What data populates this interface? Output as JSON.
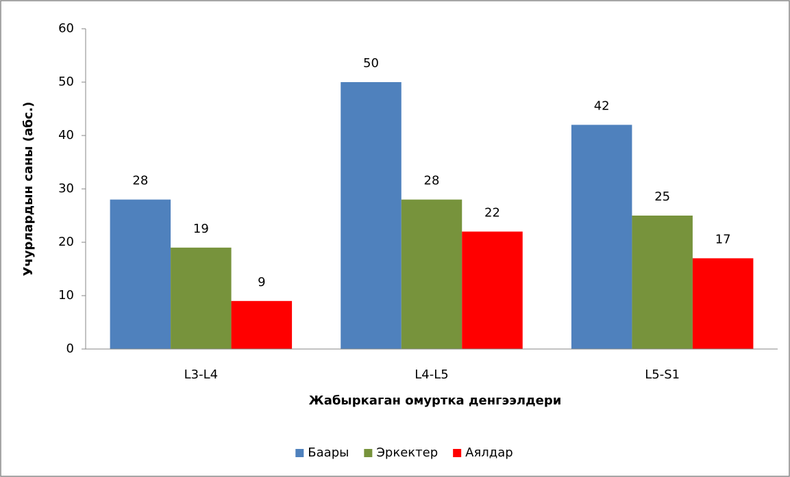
{
  "chart_data": {
    "type": "bar",
    "x_label": "Жабыркаган омуртка денгээлдери",
    "y_label": "Учурлардын саны (абс.)",
    "categories": [
      "L3-L4",
      "L4-L5",
      "L5-S1"
    ],
    "series": [
      {
        "name": "Баары",
        "color": "#4f81bd",
        "values": [
          28,
          50,
          42
        ]
      },
      {
        "name": "Эркектер",
        "color": "#77933c",
        "values": [
          19,
          28,
          25
        ]
      },
      {
        "name": "Аялдар",
        "color": "#ff0000",
        "values": [
          9,
          22,
          17
        ]
      }
    ],
    "ylim": [
      0,
      60
    ],
    "yticks": [
      0,
      10,
      20,
      30,
      40,
      50,
      60
    ],
    "grid": false,
    "legend": "bottom"
  }
}
